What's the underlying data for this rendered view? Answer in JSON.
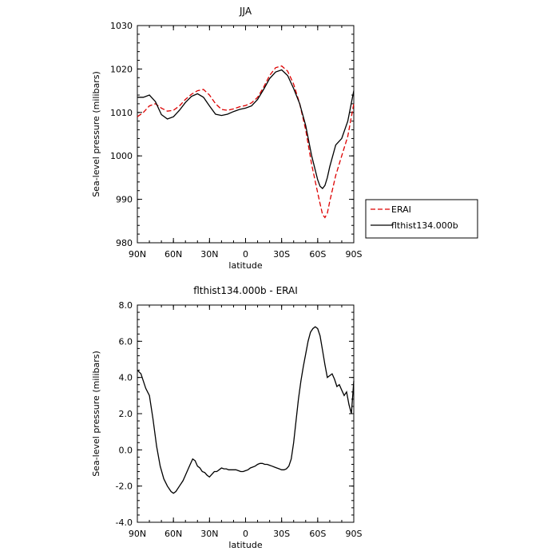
{
  "chart_data": [
    {
      "type": "line",
      "title": "JJA",
      "xlabel": "latitude",
      "ylabel": "Sea-level pressure (milibars)",
      "x_ticks": [
        90,
        60,
        30,
        0,
        -30,
        -60,
        -90
      ],
      "x_tick_labels": [
        "90N",
        "60N",
        "30N",
        "0",
        "30S",
        "60S",
        "90S"
      ],
      "xlim": [
        90,
        -90
      ],
      "ylim": [
        980,
        1030
      ],
      "y_ticks": [
        980,
        990,
        1000,
        1010,
        1020,
        1030
      ],
      "y_tick_labels": [
        "980",
        "990",
        "1000",
        "1010",
        "1020",
        "1030"
      ],
      "legend": {
        "position": "right",
        "entries": [
          "ERAI",
          "flthist134.000b"
        ]
      },
      "series": [
        {
          "name": "ERAI",
          "color": "#dd0000",
          "dash": true,
          "x": [
            90,
            85,
            80,
            75,
            70,
            65,
            60,
            55,
            50,
            45,
            40,
            35,
            30,
            25,
            20,
            15,
            10,
            5,
            0,
            -5,
            -10,
            -15,
            -20,
            -25,
            -30,
            -35,
            -40,
            -45,
            -50,
            -55,
            -60,
            -62,
            -64,
            -66,
            -68,
            -70,
            -75,
            -80,
            -85,
            -90
          ],
          "y": [
            1009,
            1010,
            1011.5,
            1012,
            1011,
            1010.3,
            1010.5,
            1011.5,
            1013,
            1014.2,
            1015,
            1015.3,
            1014,
            1012,
            1010.7,
            1010.5,
            1010.8,
            1011.3,
            1011.6,
            1012.2,
            1013.5,
            1015.8,
            1018.5,
            1020.3,
            1020.7,
            1019.5,
            1016.5,
            1012,
            1006,
            998,
            991.5,
            989,
            986.5,
            985.8,
            986.8,
            989.5,
            995.5,
            1000,
            1004.5,
            1012
          ]
        },
        {
          "name": "flthist134.000b",
          "color": "#000000",
          "dash": false,
          "x": [
            90,
            85,
            80,
            75,
            70,
            65,
            60,
            55,
            50,
            45,
            40,
            35,
            30,
            25,
            20,
            15,
            10,
            5,
            0,
            -5,
            -10,
            -15,
            -20,
            -25,
            -30,
            -35,
            -40,
            -45,
            -50,
            -55,
            -60,
            -62,
            -64,
            -66,
            -68,
            -70,
            -75,
            -80,
            -85,
            -90
          ],
          "y": [
            1013.5,
            1013.5,
            1014,
            1012.5,
            1009.5,
            1008.5,
            1009,
            1010.5,
            1012.3,
            1013.7,
            1014.3,
            1013.5,
            1011.5,
            1009.6,
            1009.3,
            1009.6,
            1010.2,
            1010.7,
            1011,
            1011.5,
            1013,
            1015.3,
            1017.8,
            1019.3,
            1019.8,
            1018.5,
            1015.5,
            1012,
            1007,
            1000,
            994.5,
            993,
            992.5,
            993.2,
            995,
            997.5,
            1002.5,
            1004,
            1008,
            1015
          ]
        }
      ]
    },
    {
      "type": "line",
      "title": "flthist134.000b - ERAI",
      "xlabel": "latitude",
      "ylabel": "Sea-level pressure (milibars)",
      "x_ticks": [
        90,
        60,
        30,
        0,
        -30,
        -60,
        -90
      ],
      "x_tick_labels": [
        "90N",
        "60N",
        "30N",
        "0",
        "30S",
        "60S",
        "90S"
      ],
      "xlim": [
        90,
        -90
      ],
      "ylim": [
        -4,
        8
      ],
      "y_ticks": [
        -4,
        -2,
        0,
        2,
        4,
        6,
        8
      ],
      "y_tick_labels": [
        "-4.0",
        "-2.0",
        "0.0",
        "2.0",
        "4.0",
        "6.0",
        "8.0"
      ],
      "series": [
        {
          "name": "",
          "color": "#000000",
          "dash": false,
          "x": [
            90,
            87,
            83,
            80,
            77,
            74,
            71,
            68,
            65,
            62,
            60,
            58,
            55,
            52,
            50,
            48,
            46,
            44,
            42,
            40,
            38,
            36,
            34,
            32,
            30,
            28,
            26,
            24,
            22,
            20,
            18,
            16,
            14,
            12,
            10,
            8,
            6,
            4,
            2,
            0,
            -2,
            -4,
            -6,
            -8,
            -10,
            -12,
            -14,
            -16,
            -18,
            -20,
            -22,
            -24,
            -26,
            -28,
            -30,
            -32,
            -34,
            -36,
            -38,
            -40,
            -42,
            -44,
            -46,
            -48,
            -50,
            -52,
            -54,
            -56,
            -58,
            -60,
            -62,
            -64,
            -66,
            -68,
            -70,
            -72,
            -74,
            -76,
            -78,
            -80,
            -82,
            -84,
            -86,
            -88,
            -90
          ],
          "y": [
            4.4,
            4.2,
            3.4,
            3.0,
            1.7,
            0.2,
            -0.9,
            -1.6,
            -2.0,
            -2.3,
            -2.4,
            -2.3,
            -2.0,
            -1.7,
            -1.4,
            -1.1,
            -0.8,
            -0.5,
            -0.6,
            -0.9,
            -1.0,
            -1.2,
            -1.25,
            -1.4,
            -1.5,
            -1.35,
            -1.2,
            -1.2,
            -1.1,
            -1.0,
            -1.05,
            -1.05,
            -1.1,
            -1.1,
            -1.1,
            -1.1,
            -1.15,
            -1.2,
            -1.2,
            -1.15,
            -1.1,
            -1.0,
            -0.95,
            -0.9,
            -0.8,
            -0.75,
            -0.75,
            -0.8,
            -0.8,
            -0.85,
            -0.9,
            -0.95,
            -1.0,
            -1.05,
            -1.1,
            -1.1,
            -1.05,
            -0.9,
            -0.5,
            0.4,
            1.6,
            2.8,
            3.8,
            4.6,
            5.3,
            6.0,
            6.5,
            6.7,
            6.8,
            6.7,
            6.3,
            5.5,
            4.7,
            4.0,
            4.1,
            4.2,
            3.9,
            3.5,
            3.6,
            3.3,
            3.0,
            3.2,
            2.5,
            2.0,
            3.8
          ]
        }
      ]
    }
  ]
}
